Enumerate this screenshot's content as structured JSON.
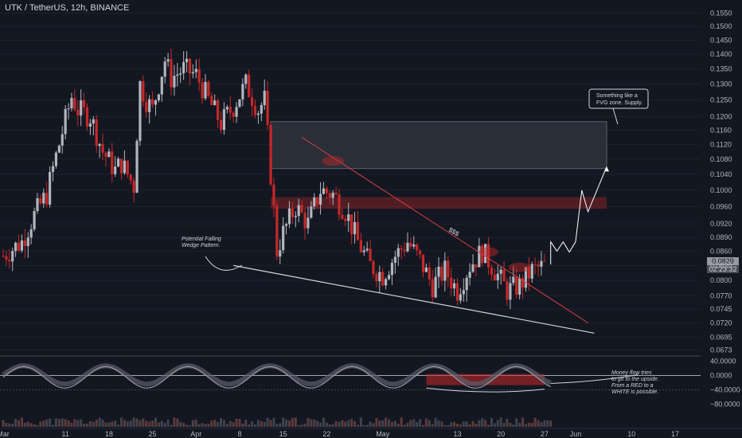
{
  "header": {
    "symbol": "UTK / TetherUS, 12h, BINANCE"
  },
  "price_tag": {
    "price": "0.0829",
    "countdown": "02:23:32"
  },
  "colors": {
    "background": "#131722",
    "up": "#b2b5be",
    "down": "#c62828",
    "trendline": "#e04040",
    "wedge": "#d1d4dc",
    "zone": "#3a3e4a",
    "red_zone": "#c62828"
  },
  "chart_data": {
    "type": "candlestick",
    "title": "UTK / TetherUS, 12h, BINANCE",
    "scale": "log",
    "ylim": [
      0.067,
      0.157
    ],
    "y_ticks": [
      "0.1550",
      "0.1500",
      "0.1450",
      "0.1400",
      "0.1350",
      "0.1300",
      "0.1250",
      "0.1200",
      "0.1160",
      "0.1120",
      "0.1080",
      "0.1040",
      "0.1000",
      "0.0960",
      "0.0920",
      "0.0890",
      "0.0860",
      "0.0830",
      "0.0800",
      "0.0770",
      "0.0745",
      "0.0720",
      "0.0695",
      "0.0673"
    ],
    "x_ticks": [
      {
        "label": "Mar",
        "date": "2022-03-01"
      },
      {
        "label": "11",
        "date": "2022-03-11"
      },
      {
        "label": "18",
        "date": "2022-03-18"
      },
      {
        "label": "25",
        "date": "2022-03-25"
      },
      {
        "label": "Apr",
        "date": "2022-04-01"
      },
      {
        "label": "8",
        "date": "2022-04-08"
      },
      {
        "label": "15",
        "date": "2022-04-15"
      },
      {
        "label": "22",
        "date": "2022-04-22"
      },
      {
        "label": "May",
        "date": "2022-05-01"
      },
      {
        "label": "13",
        "date": "2022-05-13"
      },
      {
        "label": "20",
        "date": "2022-05-20"
      },
      {
        "label": "27",
        "date": "2022-05-27"
      },
      {
        "label": "Jun",
        "date": "2022-06-01"
      },
      {
        "label": "10",
        "date": "2022-06-10"
      },
      {
        "label": "17",
        "date": "2022-06-17"
      }
    ],
    "close_path": [
      [
        "2022-03-01",
        0.085
      ],
      [
        "2022-03-04",
        0.088
      ],
      [
        "2022-03-06",
        0.094
      ],
      [
        "2022-03-08",
        0.099
      ],
      [
        "2022-03-10",
        0.112
      ],
      [
        "2022-03-12",
        0.126
      ],
      [
        "2022-03-13",
        0.122
      ],
      [
        "2022-03-15",
        0.12
      ],
      [
        "2022-03-17",
        0.11
      ],
      [
        "2022-03-19",
        0.105
      ],
      [
        "2022-03-20",
        0.107
      ],
      [
        "2022-03-22",
        0.101
      ],
      [
        "2022-03-23",
        0.13
      ],
      [
        "2022-03-24",
        0.125
      ],
      [
        "2022-03-25",
        0.122
      ],
      [
        "2022-03-26",
        0.13
      ],
      [
        "2022-03-27",
        0.138
      ],
      [
        "2022-03-28",
        0.132
      ],
      [
        "2022-03-30",
        0.135
      ],
      [
        "2022-04-01",
        0.133
      ],
      [
        "2022-04-03",
        0.125
      ],
      [
        "2022-04-05",
        0.118
      ],
      [
        "2022-04-07",
        0.123
      ],
      [
        "2022-04-09",
        0.13
      ],
      [
        "2022-04-11",
        0.122
      ],
      [
        "2022-04-12",
        0.125
      ],
      [
        "2022-04-13",
        0.104
      ],
      [
        "2022-04-14",
        0.086
      ],
      [
        "2022-04-15",
        0.09
      ],
      [
        "2022-04-17",
        0.096
      ],
      [
        "2022-04-19",
        0.092
      ],
      [
        "2022-04-21",
        0.1
      ],
      [
        "2022-04-23",
        0.099
      ],
      [
        "2022-04-25",
        0.095
      ],
      [
        "2022-04-27",
        0.088
      ],
      [
        "2022-04-29",
        0.083
      ],
      [
        "2022-05-01",
        0.081
      ],
      [
        "2022-05-03",
        0.085
      ],
      [
        "2022-05-05",
        0.088
      ],
      [
        "2022-05-07",
        0.084
      ],
      [
        "2022-05-09",
        0.079
      ],
      [
        "2022-05-11",
        0.082
      ],
      [
        "2022-05-13",
        0.078
      ],
      [
        "2022-05-15",
        0.083
      ],
      [
        "2022-05-17",
        0.086
      ],
      [
        "2022-05-19",
        0.082
      ],
      [
        "2022-05-21",
        0.078
      ],
      [
        "2022-05-23",
        0.079
      ],
      [
        "2022-05-25",
        0.082
      ],
      [
        "2022-05-27",
        0.0829
      ]
    ],
    "zones": [
      {
        "name": "supply_zone",
        "from": "2022-04-13",
        "to": "2022-06-06",
        "low": 0.1055,
        "high": 0.1185
      },
      {
        "name": "red_zone",
        "from": "2022-04-13",
        "to": "2022-06-06",
        "low": 0.0955,
        "high": 0.0983
      }
    ],
    "trendline_upper": [
      [
        "2022-04-18",
        0.114
      ],
      [
        "2022-06-03",
        0.072
      ]
    ],
    "trendline_lower": [
      [
        "2022-04-07",
        0.083
      ],
      [
        "2022-06-04",
        0.0702
      ]
    ],
    "projection": [
      [
        "2022-05-28",
        0.0832
      ],
      [
        "2022-05-28",
        0.088
      ],
      [
        "2022-05-29",
        0.086
      ],
      [
        "2022-05-30",
        0.088
      ],
      [
        "2022-05-31",
        0.0858
      ],
      [
        "2022-06-01",
        0.088
      ],
      [
        "2022-06-02",
        0.1
      ],
      [
        "2022-06-03",
        0.0948
      ],
      [
        "2022-06-06",
        0.106
      ]
    ],
    "annotations": [
      {
        "name": "wedge_note",
        "lines": [
          "Potential Falling",
          "Wedge Pattern."
        ]
      },
      {
        "name": "dollar_note",
        "lines": [
          "$$$"
        ]
      },
      {
        "name": "fvg_note",
        "lines": [
          "Something like a",
          "FVG zone. Supply."
        ]
      },
      {
        "name": "money_flow_note",
        "lines": [
          "Money flow tries",
          "to go to the upside.",
          "From a RED to a",
          "WHITE is possible."
        ]
      }
    ],
    "oscillator": {
      "y_ticks": [
        "40.0000",
        "0.0000",
        "−40.0000",
        "−80.0000"
      ],
      "ylim": [
        -90,
        48
      ]
    }
  }
}
